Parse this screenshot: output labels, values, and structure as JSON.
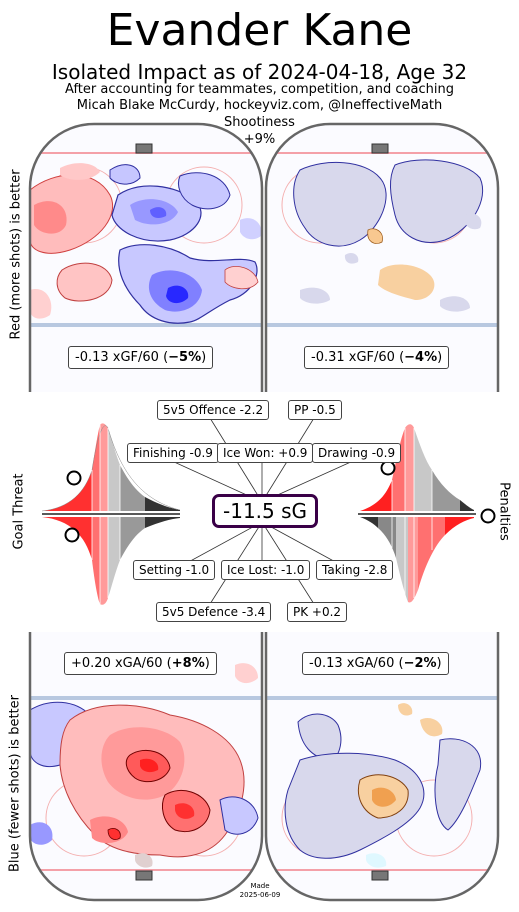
{
  "header": {
    "title": "Evander Kane",
    "subtitle": "Isolated Impact as of 2024-04-18, Age 32",
    "credit_line1": "After accounting for teammates, competition, and coaching",
    "credit_line2": "Micah Blake McCurdy, hockeyviz.com, @IneffectiveMath"
  },
  "side_labels": {
    "top": "Red (more shots) is better",
    "middle_left": "Goal Threat",
    "middle_right": "Penalties",
    "bottom": "Blue (fewer shots) is better"
  },
  "shootiness": {
    "label": "Shootiness",
    "value": "+9%"
  },
  "offense": {
    "even_strength": {
      "prefix": "-0.13 xGF/60 (",
      "pct": "−5%",
      "suffix": ")"
    },
    "powerplay": {
      "prefix": "-0.31 xGF/60 (",
      "pct": "−4%",
      "suffix": ")"
    }
  },
  "defense": {
    "even_strength": {
      "prefix": "+0.20 xGA/60 (",
      "pct": "+8%",
      "suffix": ")"
    },
    "penalty_kill": {
      "prefix": "-0.13 xGA/60 (",
      "pct": "−2%",
      "suffix": ")"
    }
  },
  "total": {
    "label": "-11.5 sG"
  },
  "components": {
    "offence_5v5": "5v5 Offence -2.2",
    "pp": "PP -0.5",
    "finishing": "Finishing -0.9",
    "ice_won": "Ice Won: +0.9",
    "drawing": "Drawing -0.9",
    "setting": "Setting -1.0",
    "ice_lost": "Ice Lost: -1.0",
    "taking": "Taking -2.8",
    "defence_5v5": "5v5 Defence -3.4",
    "pk": "PK +0.2"
  },
  "footer": {
    "made_label": "Made",
    "made_date": "2025-06-09"
  },
  "chart_data": {
    "type": "other",
    "title": "Evander Kane",
    "subtitle": "Isolated Impact as of 2024-04-18, Age 32",
    "total_sG": -11.5,
    "shootiness_pct": 9,
    "offense": [
      {
        "situation": "5v5",
        "xGF_per60": -0.13,
        "pct": -5
      },
      {
        "situation": "PP",
        "xGF_per60": -0.31,
        "pct": -4
      }
    ],
    "defense": [
      {
        "situation": "5v5",
        "xGA_per60": 0.2,
        "pct": 8
      },
      {
        "situation": "PK",
        "xGA_per60": -0.13,
        "pct": -2
      }
    ],
    "components": [
      {
        "name": "5v5 Offence",
        "value": -2.2
      },
      {
        "name": "PP",
        "value": -0.5
      },
      {
        "name": "Finishing",
        "value": -0.9
      },
      {
        "name": "Ice Won",
        "value": 0.9
      },
      {
        "name": "Drawing",
        "value": -0.9
      },
      {
        "name": "Setting",
        "value": -1.0
      },
      {
        "name": "Ice Lost",
        "value": -1.0
      },
      {
        "name": "Taking",
        "value": -2.8
      },
      {
        "name": "5v5 Defence",
        "value": -3.4
      },
      {
        "name": "PK",
        "value": 0.2
      }
    ],
    "colors": {
      "more_shots": "#ff3333",
      "fewer_shots": "#3333ff",
      "pp_pk": "#f0a040",
      "sg_border": "#3a0047"
    }
  }
}
